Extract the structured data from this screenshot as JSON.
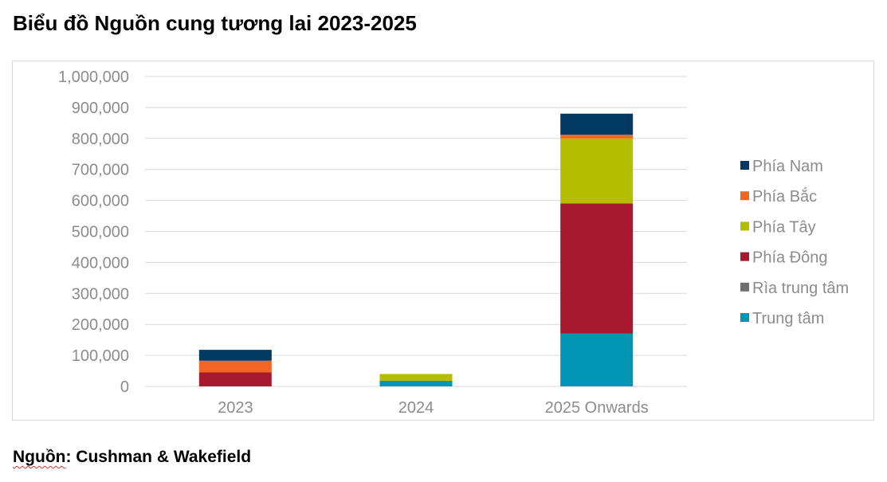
{
  "chart_data": {
    "type": "bar",
    "stacked": true,
    "title": "Biểu đồ Nguồn cung tương lai 2023-2025",
    "categories": [
      "2023",
      "2024",
      "2025 Onwards"
    ],
    "ylim": [
      0,
      1000000
    ],
    "yticks": [
      "0",
      "100,000",
      "200,000",
      "300,000",
      "400,000",
      "500,000",
      "600,000",
      "700,000",
      "800,000",
      "900,000",
      "1,000,000"
    ],
    "grid": true,
    "legend_position": "right",
    "series": [
      {
        "name": "Trung tâm",
        "color": "#0096b4",
        "values": [
          0,
          18000,
          170000
        ]
      },
      {
        "name": "Rìa trung tâm",
        "color": "#6e6e6e",
        "values": [
          0,
          0,
          0
        ]
      },
      {
        "name": "Phía Đông",
        "color": "#a6192e",
        "values": [
          45000,
          0,
          420000
        ]
      },
      {
        "name": "Phía Tây",
        "color": "#b5bd00",
        "values": [
          0,
          22000,
          210000
        ]
      },
      {
        "name": "Phía Bắc",
        "color": "#f26522",
        "values": [
          38000,
          0,
          12000
        ]
      },
      {
        "name": "Phía Nam",
        "color": "#003a63",
        "values": [
          35000,
          0,
          68000
        ]
      }
    ]
  },
  "source": {
    "label": "Nguồn",
    "text": ": Cushman & Wakefield"
  }
}
